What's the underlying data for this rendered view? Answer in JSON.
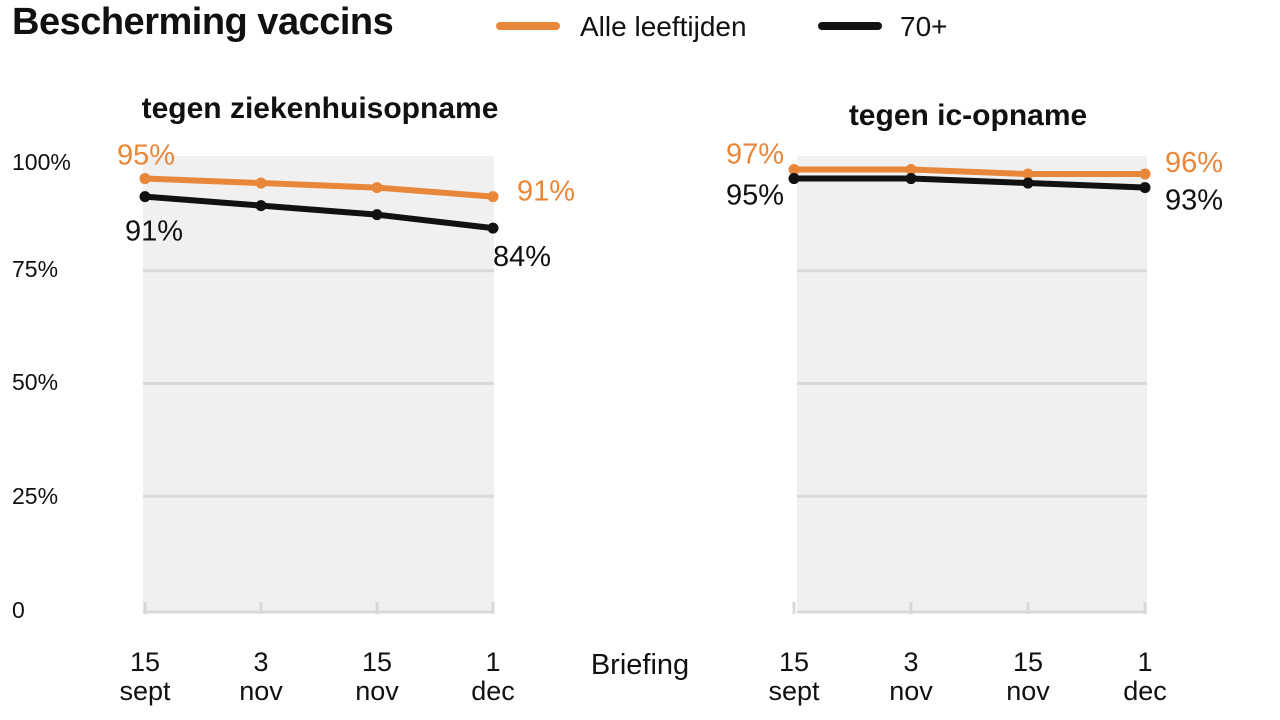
{
  "title": "Bescherming vaccins",
  "colors": {
    "all_ages": "#E8873A",
    "age70": "#111111",
    "plot_bg": "#F0F0F0",
    "grid": "#D9D9D9",
    "text": "#111111"
  },
  "legend": [
    {
      "label": "Alle leeftijden",
      "color": "#E8873A"
    },
    {
      "label": "70+",
      "color": "#111111"
    }
  ],
  "x_axis_title": "Briefing",
  "chart_data": [
    {
      "type": "line",
      "title": "tegen ziekenhuisopname",
      "categories": [
        {
          "day": "15",
          "month": "sept"
        },
        {
          "day": "3",
          "month": "nov"
        },
        {
          "day": "15",
          "month": "nov"
        },
        {
          "day": "1",
          "month": "dec"
        }
      ],
      "yticks": [
        "100%",
        "75%",
        "50%",
        "25%",
        "0"
      ],
      "ylim": [
        0,
        100
      ],
      "grid": true,
      "series": [
        {
          "name": "Alle leeftijden",
          "values": [
            95,
            94,
            93,
            91
          ],
          "start_label": "95%",
          "end_label": "91%"
        },
        {
          "name": "70+",
          "values": [
            91,
            89,
            87,
            84
          ],
          "start_label": "91%",
          "end_label": "84%"
        }
      ]
    },
    {
      "type": "line",
      "title": "tegen ic-opname",
      "categories": [
        {
          "day": "15",
          "month": "sept"
        },
        {
          "day": "3",
          "month": "nov"
        },
        {
          "day": "15",
          "month": "nov"
        },
        {
          "day": "1",
          "month": "dec"
        }
      ],
      "yticks": [],
      "ylim": [
        0,
        100
      ],
      "grid": true,
      "series": [
        {
          "name": "Alle leeftijden",
          "values": [
            97,
            97,
            96,
            96
          ],
          "start_label": "97%",
          "end_label": "96%"
        },
        {
          "name": "70+",
          "values": [
            95,
            95,
            94,
            93
          ],
          "start_label": "95%",
          "end_label": "93%"
        }
      ]
    }
  ]
}
